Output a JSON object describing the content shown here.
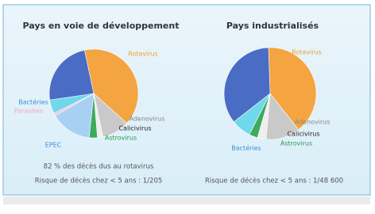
{
  "chart_data": [
    {
      "type": "pie",
      "title": "Pays en voie de développement",
      "categories": [
        "Rotavirus",
        "Adenovirus",
        "Calicivirus",
        "Astrovirus",
        "EPEC",
        "Parasites",
        "Bactéries",
        null
      ],
      "values": [
        40,
        10,
        2,
        3,
        15,
        1,
        5,
        24
      ],
      "colors": [
        "#f4a440",
        "#c9c9c9",
        "#eeeeee",
        "#3daa5c",
        "#a8d0f2",
        "#f5c6d6",
        "#6fd8ea",
        "#4a6cc4"
      ],
      "label_colors": [
        "#f0a030",
        "#888888",
        "#222222",
        "#2e9a4e",
        "#3a8fd8",
        "#f0a8c0",
        "#3a8fd8",
        "#4a6cc4"
      ],
      "annotations": [
        "82 % des décès dus au rotavirus",
        "Risque de décès chez < 5 ans : 1/205"
      ]
    },
    {
      "type": "pie",
      "title": "Pays industrialisés",
      "categories": [
        "Rotavirus",
        "Adenovirus",
        "Calicivirus",
        "Astrovirus",
        "Bactéries",
        null
      ],
      "values": [
        40,
        12,
        3,
        3,
        7,
        35
      ],
      "colors": [
        "#f4a440",
        "#c9c9c9",
        "#eeeeee",
        "#3daa5c",
        "#6fd8ea",
        "#4a6cc4"
      ],
      "label_colors": [
        "#f0a030",
        "#888888",
        "#222222",
        "#2e9a4e",
        "#3a8fd8",
        "#4a6cc4"
      ],
      "annotations": [
        "Risque de décès chez < 5 ans : 1/48 600"
      ]
    }
  ]
}
